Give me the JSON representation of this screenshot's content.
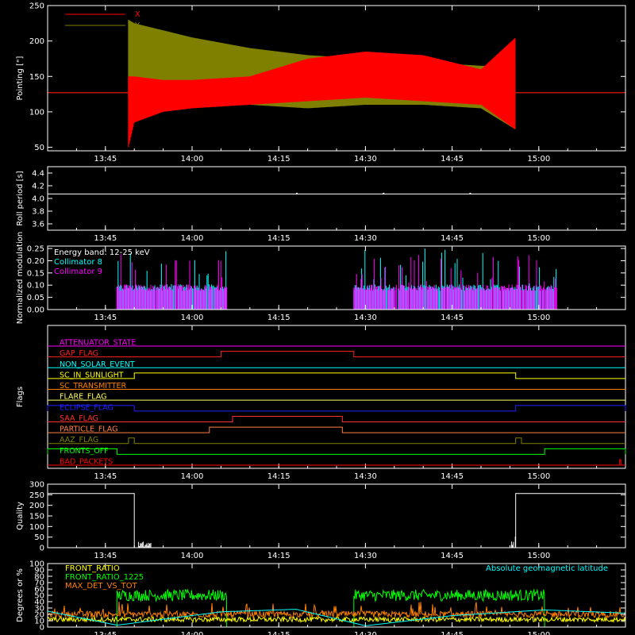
{
  "chart_data": [
    {
      "type": "line",
      "ylabel": "Pointing [\"]",
      "ylim": [
        45,
        250
      ],
      "yticks": [
        "50",
        "100",
        "150",
        "200",
        "250"
      ],
      "xticks": [
        "13:45",
        "14:00",
        "14:15",
        "14:30",
        "14:45",
        "15:00"
      ],
      "x_range": [
        "13:35",
        "15:15"
      ],
      "legend_position": "top-left",
      "series": [
        {
          "name": "X",
          "color": "#ff0000",
          "baseline": 127,
          "active_range": [
            "13:49",
            "14:56"
          ],
          "x": [
            "13:49",
            "13:50",
            "13:55",
            "14:00",
            "14:10",
            "14:20",
            "14:30",
            "14:40",
            "14:50",
            "14:56"
          ],
          "low": [
            50,
            85,
            100,
            105,
            110,
            115,
            120,
            115,
            110,
            75
          ],
          "high": [
            150,
            150,
            145,
            145,
            150,
            175,
            185,
            180,
            160,
            205
          ]
        },
        {
          "name": "Y",
          "color": "#808000",
          "baseline": 127,
          "active_range": [
            "13:49",
            "14:56"
          ],
          "x": [
            "13:49",
            "13:50",
            "13:55",
            "14:00",
            "14:10",
            "14:20",
            "14:30",
            "14:40",
            "14:50",
            "14:56"
          ],
          "low": [
            120,
            120,
            118,
            115,
            110,
            105,
            110,
            110,
            105,
            75
          ],
          "high": [
            230,
            225,
            215,
            205,
            190,
            180,
            175,
            170,
            165,
            165
          ]
        }
      ]
    },
    {
      "type": "line",
      "ylabel": "Roll period [s]",
      "ylim": [
        3.5,
        4.5
      ],
      "yticks": [
        "3.6",
        "3.8",
        "4.0",
        "4.2",
        "4.4"
      ],
      "xticks": [
        "13:45",
        "14:00",
        "14:15",
        "14:30",
        "14:45",
        "15:00"
      ],
      "series": [
        {
          "name": "",
          "color": "#ffffff",
          "values": [
            4.07
          ]
        }
      ]
    },
    {
      "type": "bar",
      "ylabel": "Normalized modulation",
      "ylim": [
        0,
        0.26
      ],
      "yticks": [
        "0.00",
        "0.05",
        "0.10",
        "0.15",
        "0.20",
        "0.25"
      ],
      "xticks": [
        "13:45",
        "14:00",
        "14:15",
        "14:30",
        "14:45",
        "15:00"
      ],
      "annotation": "Energy band: 12-25 keV",
      "intervals": [
        [
          "13:47",
          "14:06"
        ],
        [
          "14:28",
          "15:03"
        ]
      ],
      "series": [
        {
          "name": "Collimator 8",
          "color": "#00ffff",
          "typical": 0.09,
          "max": 0.25
        },
        {
          "name": "Collimator 9",
          "color": "#ff00ff",
          "typical": 0.09,
          "max": 0.23
        }
      ]
    },
    {
      "type": "line",
      "ylabel": "Flags",
      "xticks": [
        "13:45",
        "14:00",
        "14:15",
        "14:30",
        "14:45",
        "15:00"
      ],
      "series": [
        {
          "name": "ATTENUATOR_STATE",
          "color": "#ff00ff",
          "segments": []
        },
        {
          "name": "GAP_FLAG",
          "color": "#ff2020",
          "segments": [
            [
              "14:05",
              "14:28"
            ]
          ]
        },
        {
          "name": "NON_SOLAR_EVENT",
          "color": "#00ffff",
          "segments": []
        },
        {
          "name": "SC_IN_SUNLIGHT",
          "color": "#ffff00",
          "segments": [
            [
              "13:50",
              "14:56"
            ]
          ]
        },
        {
          "name": "SC_TRANSMITTER",
          "color": "#ff7f00",
          "segments": []
        },
        {
          "name": "FLARE_FLAG",
          "color": "#ffff60",
          "segments": []
        },
        {
          "name": "ECLIPSE_FLAG",
          "color": "#2020ff",
          "segments": [
            [
              "13:35",
              "13:50"
            ],
            [
              "14:56",
              "15:15"
            ]
          ]
        },
        {
          "name": "SAA_FLAG",
          "color": "#ff3030",
          "segments": [
            [
              "14:07",
              "14:26"
            ]
          ]
        },
        {
          "name": "PARTICLE_FLAG",
          "color": "#ff8040",
          "segments": [
            [
              "14:03",
              "14:26"
            ]
          ]
        },
        {
          "name": "AAZ_FLAG",
          "color": "#808000",
          "segments": [
            [
              "13:49",
              "13:50"
            ],
            [
              "14:56",
              "14:57"
            ]
          ]
        },
        {
          "name": "FRONTS_OFF",
          "color": "#00ff00",
          "segments": [
            [
              "13:35",
              "13:47"
            ],
            [
              "15:01",
              "15:15"
            ]
          ]
        },
        {
          "name": "BAD_PACKETS",
          "color": "#ff0000",
          "segments": [
            [
              "15:14",
              "15:14.2"
            ]
          ]
        }
      ]
    },
    {
      "type": "line",
      "ylabel": "Quality",
      "ylim": [
        0,
        300
      ],
      "yticks": [
        "0",
        "50",
        "100",
        "150",
        "200",
        "250",
        "300"
      ],
      "xticks": [
        "13:45",
        "14:00",
        "14:15",
        "14:30",
        "14:45",
        "15:00"
      ],
      "series": [
        {
          "name": "",
          "color": "#ffffff",
          "high": 256,
          "high_ranges": [
            [
              "13:35",
              "13:50"
            ],
            [
              "14:56",
              "15:15"
            ]
          ],
          "low": 0
        }
      ]
    },
    {
      "type": "line",
      "ylabel": "Degrees or %",
      "ylim": [
        0,
        100
      ],
      "yticks": [
        "0",
        "10",
        "20",
        "30",
        "40",
        "50",
        "60",
        "70",
        "80",
        "90",
        "100"
      ],
      "xticks": [
        "13:45",
        "14:00",
        "14:15",
        "14:30",
        "14:45",
        "15:00"
      ],
      "annotation": "Absolute geomagnetic latitude",
      "annotation_color": "#00ffff",
      "series": [
        {
          "name": "FRONT_RATIO",
          "color": "#ffff00",
          "typical": 12
        },
        {
          "name": "FRONT_RATIO_1225",
          "color": "#00ff00",
          "typical": 50,
          "intervals": [
            [
              "13:47",
              "14:06"
            ],
            [
              "14:28",
              "15:01"
            ]
          ]
        },
        {
          "name": "MAX_DET_VS_TOT",
          "color": "#ff8000",
          "typical": 20
        },
        {
          "name": "",
          "color": "#00ffff",
          "x": [
            "13:35",
            "13:47",
            "14:05",
            "14:18",
            "14:30",
            "14:45",
            "15:01",
            "15:15"
          ],
          "values": [
            25,
            3,
            24,
            28,
            2,
            18,
            27,
            22
          ]
        }
      ]
    }
  ]
}
